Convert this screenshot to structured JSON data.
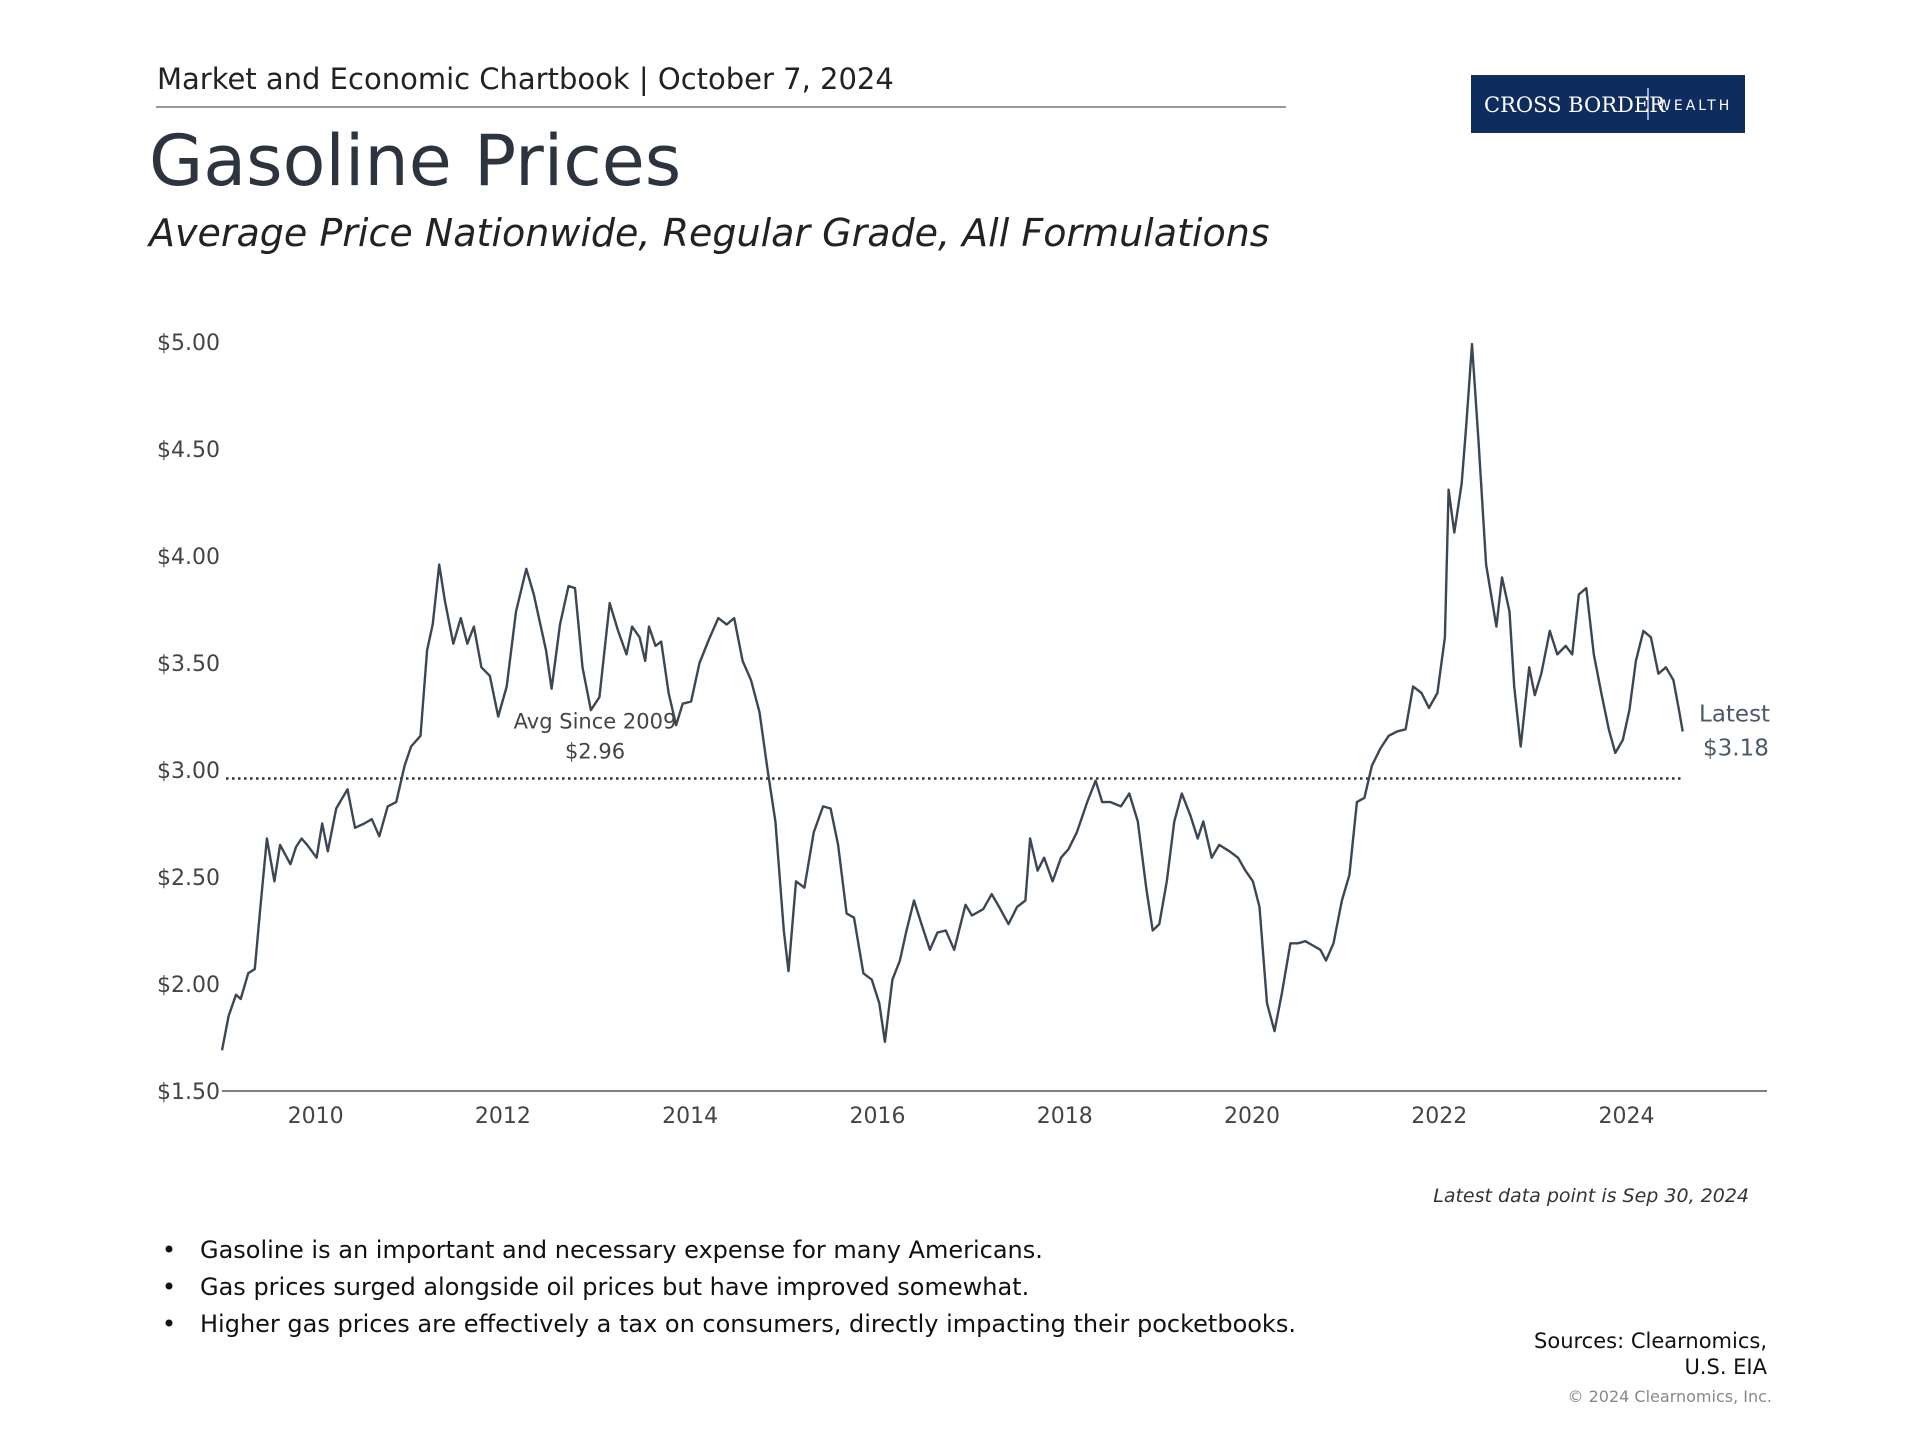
{
  "header": "Market and Economic Chartbook | October 7, 2024",
  "logo": {
    "left": "CROSS BORDER",
    "right": "WEALTH"
  },
  "chart_data": {
    "type": "line",
    "title": "Gasoline Prices",
    "subtitle": "Average Price Nationwide, Regular Grade, All Formulations",
    "note": "Latest data point is Sep 30, 2024",
    "color": "#3b4754",
    "xlim": [
      2009,
      2025.5
    ],
    "xticks": [
      2010,
      2012,
      2014,
      2016,
      2018,
      2020,
      2022,
      2024
    ],
    "ylim": [
      1.5,
      5.0
    ],
    "yticks": [
      {
        "value": 1.5,
        "label": "$1.50"
      },
      {
        "value": 2.0,
        "label": "$2.00"
      },
      {
        "value": 2.5,
        "label": "$2.50"
      },
      {
        "value": 3.0,
        "label": "$3.00"
      },
      {
        "value": 3.5,
        "label": "$3.50"
      },
      {
        "value": 4.0,
        "label": "$4.00"
      },
      {
        "value": 4.5,
        "label": "$4.50"
      },
      {
        "value": 5.0,
        "label": "$5.00"
      }
    ],
    "average": {
      "label": "Avg Since 2009",
      "value": 2.96,
      "value_label": "$2.96"
    },
    "latest": {
      "label": "Latest",
      "value": 3.18,
      "value_label": "$3.18"
    },
    "x": [
      2009.0,
      2009.07,
      2009.15,
      2009.2,
      2009.28,
      2009.35,
      2009.41,
      2009.48,
      2009.56,
      2009.62,
      2009.73,
      2009.79,
      2009.85,
      2009.91,
      2010.01,
      2010.07,
      2010.13,
      2010.22,
      2010.34,
      2010.42,
      2010.52,
      2010.6,
      2010.68,
      2010.77,
      2010.86,
      2010.95,
      2011.02,
      2011.12,
      2011.19,
      2011.25,
      2011.32,
      2011.38,
      2011.47,
      2011.55,
      2011.62,
      2011.69,
      2011.77,
      2011.86,
      2011.95,
      2012.04,
      2012.14,
      2012.25,
      2012.33,
      2012.46,
      2012.52,
      2012.61,
      2012.7,
      2012.77,
      2012.85,
      2012.94,
      2013.03,
      2013.14,
      2013.23,
      2013.32,
      2013.38,
      2013.46,
      2013.52,
      2013.56,
      2013.63,
      2013.69,
      2013.77,
      2013.85,
      2013.92,
      2014.01,
      2014.1,
      2014.2,
      2014.3,
      2014.39,
      2014.47,
      2014.56,
      2014.65,
      2014.74,
      2014.83,
      2014.91,
      2015.0,
      2015.05,
      2015.13,
      2015.22,
      2015.32,
      2015.42,
      2015.5,
      2015.58,
      2015.67,
      2015.75,
      2015.85,
      2015.94,
      2016.02,
      2016.08,
      2016.16,
      2016.24,
      2016.31,
      2016.39,
      2016.47,
      2016.56,
      2016.64,
      2016.73,
      2016.82,
      2016.94,
      2017.01,
      2017.13,
      2017.22,
      2017.3,
      2017.4,
      2017.49,
      2017.58,
      2017.63,
      2017.71,
      2017.78,
      2017.87,
      2017.96,
      2018.04,
      2018.13,
      2018.24,
      2018.33,
      2018.4,
      2018.49,
      2018.6,
      2018.69,
      2018.78,
      2018.87,
      2018.94,
      2019.01,
      2019.09,
      2019.17,
      2019.25,
      2019.34,
      2019.42,
      2019.48,
      2019.57,
      2019.65,
      2019.76,
      2019.85,
      2019.93,
      2020.01,
      2020.08,
      2020.16,
      2020.24,
      2020.32,
      2020.41,
      2020.49,
      2020.57,
      2020.65,
      2020.73,
      2020.79,
      2020.87,
      2020.96,
      2021.04,
      2021.12,
      2021.2,
      2021.28,
      2021.37,
      2021.46,
      2021.55,
      2021.64,
      2021.72,
      2021.81,
      2021.89,
      2021.98,
      2022.06,
      2022.1,
      2022.16,
      2022.24,
      2022.29,
      2022.35,
      2022.42,
      2022.5,
      2022.61,
      2022.67,
      2022.75,
      2022.8,
      2022.87,
      2022.96,
      2023.02,
      2023.09,
      2023.18,
      2023.26,
      2023.35,
      2023.42,
      2023.49,
      2023.57,
      2023.65,
      2023.73,
      2023.81,
      2023.88,
      2023.96,
      2024.03,
      2024.1,
      2024.18,
      2024.26,
      2024.34,
      2024.42,
      2024.5,
      2024.56,
      2024.6
    ],
    "values": [
      1.69,
      1.85,
      1.95,
      1.93,
      2.05,
      2.07,
      2.36,
      2.68,
      2.48,
      2.65,
      2.56,
      2.64,
      2.68,
      2.65,
      2.59,
      2.75,
      2.62,
      2.82,
      2.91,
      2.73,
      2.75,
      2.77,
      2.69,
      2.83,
      2.85,
      3.02,
      3.11,
      3.16,
      3.56,
      3.68,
      3.96,
      3.79,
      3.59,
      3.71,
      3.59,
      3.67,
      3.48,
      3.44,
      3.25,
      3.39,
      3.74,
      3.94,
      3.82,
      3.56,
      3.38,
      3.68,
      3.86,
      3.85,
      3.48,
      3.28,
      3.34,
      3.78,
      3.65,
      3.54,
      3.67,
      3.62,
      3.51,
      3.67,
      3.58,
      3.6,
      3.36,
      3.21,
      3.31,
      3.32,
      3.5,
      3.61,
      3.71,
      3.68,
      3.71,
      3.51,
      3.42,
      3.27,
      2.99,
      2.76,
      2.25,
      2.06,
      2.48,
      2.45,
      2.71,
      2.83,
      2.82,
      2.65,
      2.33,
      2.31,
      2.05,
      2.02,
      1.91,
      1.73,
      2.02,
      2.11,
      2.25,
      2.39,
      2.28,
      2.16,
      2.24,
      2.25,
      2.16,
      2.37,
      2.32,
      2.35,
      2.42,
      2.36,
      2.28,
      2.36,
      2.39,
      2.68,
      2.53,
      2.59,
      2.48,
      2.59,
      2.63,
      2.71,
      2.85,
      2.95,
      2.85,
      2.85,
      2.83,
      2.89,
      2.76,
      2.45,
      2.25,
      2.28,
      2.48,
      2.76,
      2.89,
      2.79,
      2.68,
      2.76,
      2.59,
      2.65,
      2.62,
      2.59,
      2.53,
      2.48,
      2.36,
      1.91,
      1.78,
      1.96,
      2.19,
      2.19,
      2.2,
      2.18,
      2.16,
      2.11,
      2.19,
      2.39,
      2.51,
      2.85,
      2.87,
      3.02,
      3.1,
      3.16,
      3.18,
      3.19,
      3.39,
      3.36,
      3.29,
      3.36,
      3.62,
      4.31,
      4.11,
      4.34,
      4.62,
      4.99,
      4.53,
      3.96,
      3.67,
      3.9,
      3.74,
      3.39,
      3.11,
      3.48,
      3.35,
      3.45,
      3.65,
      3.54,
      3.58,
      3.54,
      3.82,
      3.85,
      3.54,
      3.36,
      3.19,
      3.08,
      3.14,
      3.28,
      3.51,
      3.65,
      3.62,
      3.45,
      3.48,
      3.42,
      3.28,
      3.18
    ]
  },
  "bullets": [
    "Gasoline is an important and necessary expense for many Americans.",
    "Gas prices surged alongside oil prices but have improved somewhat.",
    "Higher gas prices are effectively a tax on consumers, directly impacting their pocketbooks."
  ],
  "sources": [
    "Sources: Clearnomics,",
    "U.S. EIA"
  ],
  "copyright": "© 2024 Clearnomics, Inc."
}
